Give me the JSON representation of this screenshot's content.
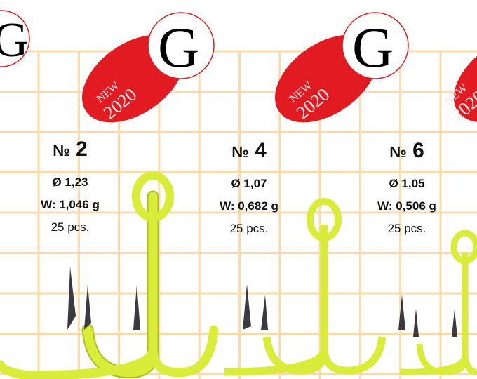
{
  "badge": {
    "new_label": "NEW",
    "year_label": "2020",
    "logo_letter": "G"
  },
  "colors": {
    "grid": "#fcd9a8",
    "badge_red": "#e21b23",
    "hook": "#d9ec3a",
    "hook_outline": "#a9c020",
    "tip": "#3a3a40"
  },
  "products": [
    {
      "number_symbol": "№",
      "number": "2",
      "diameter": "Ø 1,23",
      "weight": "W: 1,046 g",
      "pieces": "25 pcs."
    },
    {
      "number_symbol": "№",
      "number": "4",
      "diameter": "Ø 1,07",
      "weight": "W: 0,682 g",
      "pieces": "25 pcs."
    },
    {
      "number_symbol": "№",
      "number": "6",
      "diameter": "Ø 1,05",
      "weight": "W: 0,506 g",
      "pieces": "25 pcs."
    }
  ]
}
